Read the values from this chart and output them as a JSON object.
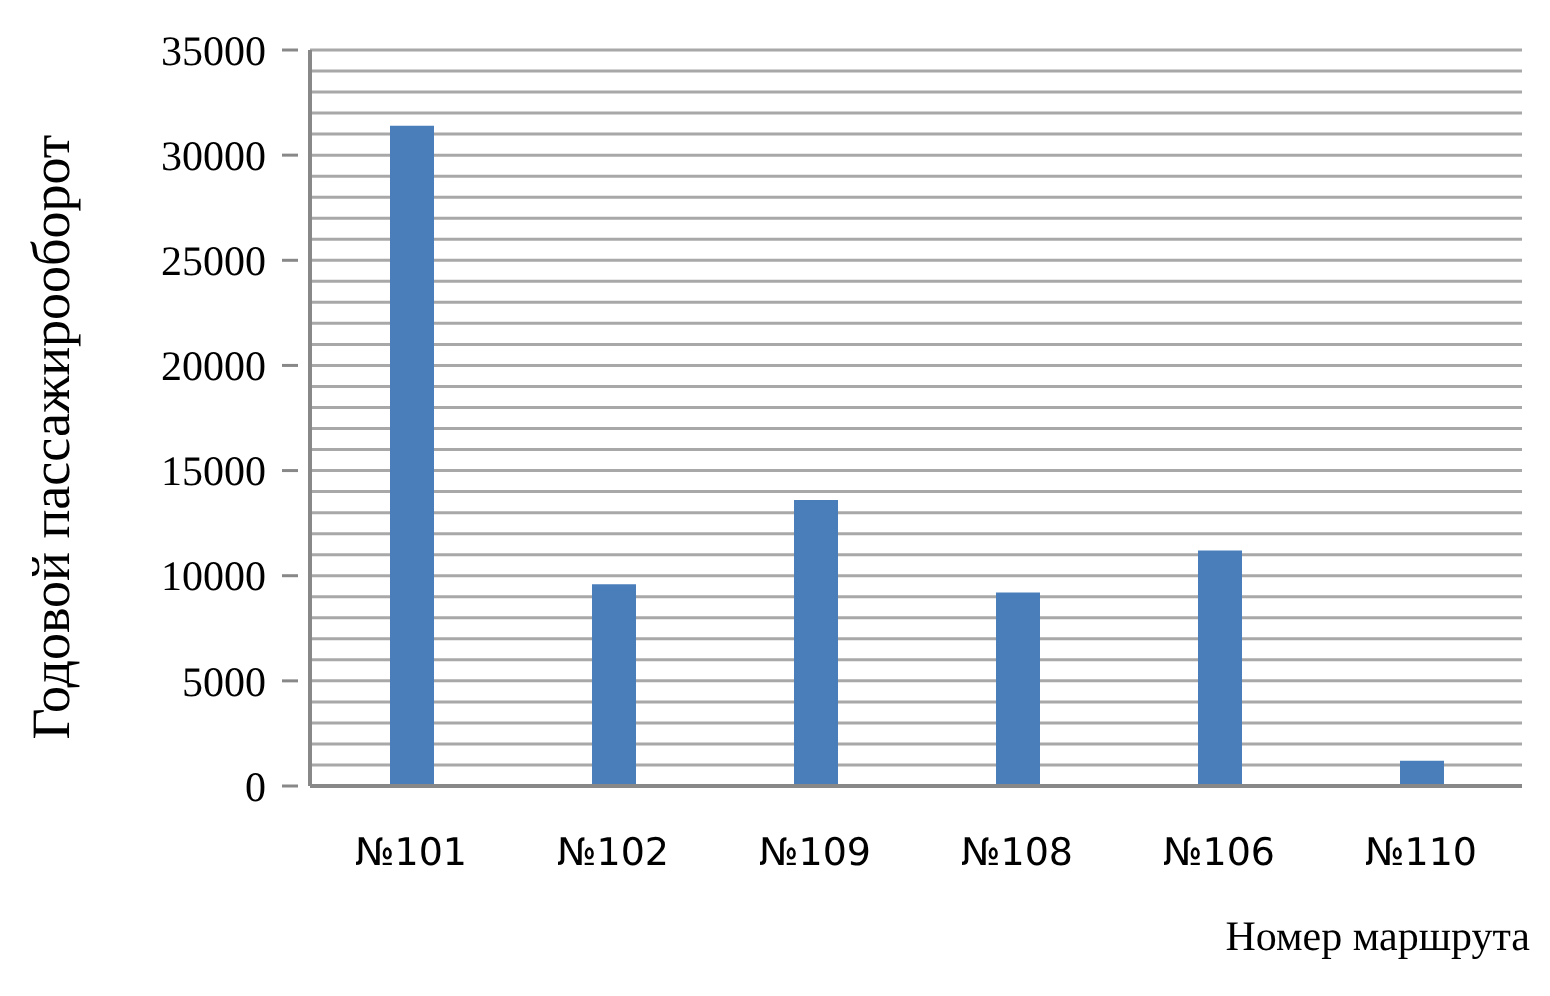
{
  "chart_data": {
    "type": "bar",
    "categories": [
      "№101",
      "№102",
      "№109",
      "№108",
      "№106",
      "№110"
    ],
    "values": [
      31400,
      9600,
      13600,
      9200,
      11200,
      1200
    ],
    "color": "#4a7ebb",
    "ylabel": "Годовой пассажирооборот",
    "xlabel": "Номер маршрута",
    "ylim": [
      0,
      35000
    ],
    "yticks": [
      0,
      {
        "value": 1000,
        "label": null
      },
      {
        "value": 2000,
        "label": null
      },
      {
        "value": 3000,
        "label": null
      },
      {
        "value": 4000,
        "label": null
      },
      5000,
      {
        "value": 6000,
        "label": null
      },
      {
        "value": 7000,
        "label": null
      },
      {
        "value": 8000,
        "label": null
      },
      {
        "value": 9000,
        "label": null
      },
      10000,
      {
        "value": 11000,
        "label": null
      },
      {
        "value": 12000,
        "label": null
      },
      {
        "value": 13000,
        "label": null
      },
      {
        "value": 14000,
        "label": null
      },
      15000,
      {
        "value": 16000,
        "label": null
      },
      {
        "value": 17000,
        "label": null
      },
      {
        "value": 18000,
        "label": null
      },
      {
        "value": 19000,
        "label": null
      },
      20000,
      {
        "value": 21000,
        "label": null
      },
      {
        "value": 22000,
        "label": null
      },
      {
        "value": 23000,
        "label": null
      },
      {
        "value": 24000,
        "label": null
      },
      25000,
      {
        "value": 26000,
        "label": null
      },
      {
        "value": 27000,
        "label": null
      },
      {
        "value": 28000,
        "label": null
      },
      {
        "value": 29000,
        "label": null
      },
      30000,
      {
        "value": 31000,
        "label": null
      },
      {
        "value": 32000,
        "label": null
      },
      {
        "value": 33000,
        "label": null
      },
      {
        "value": 34000,
        "label": null
      },
      35000
    ],
    "grid": "y"
  }
}
